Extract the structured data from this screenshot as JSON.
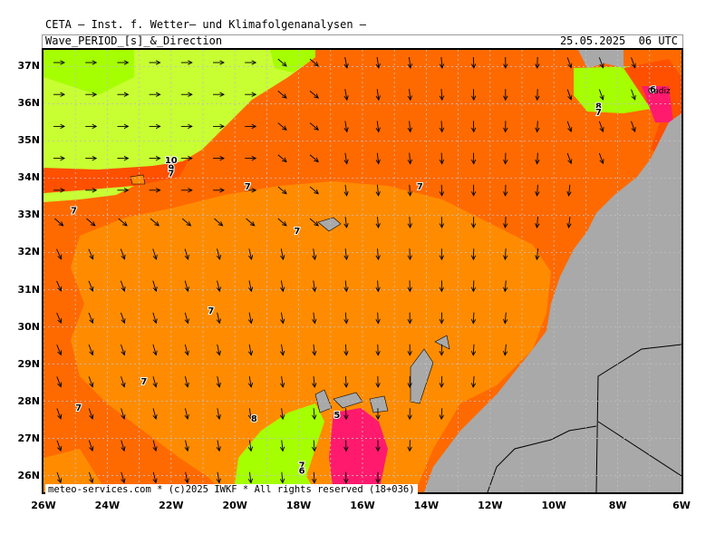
{
  "header": {
    "title": "CETA — Inst. f. Wetter— und Klimafolgenanalysen —",
    "subtitle": "Wave_PERIOD_[s]_&_Direction",
    "datetime": "25.05.2025  06 UTC"
  },
  "footer": "meteo-services.com * (c)2025 IWKF * All rights reserved (18+036)",
  "axes": {
    "lat_labels": [
      "37N",
      "36N",
      "35N",
      "34N",
      "33N",
      "32N",
      "31N",
      "30N",
      "29N",
      "28N",
      "27N",
      "26N"
    ],
    "lon_labels": [
      "26W",
      "24W",
      "22W",
      "20W",
      "18W",
      "16W",
      "14W",
      "12W",
      "10W",
      "8W",
      "6W"
    ]
  },
  "place_labels": {
    "cadiz": "Cadiz"
  },
  "period_labels": [
    {
      "text": "10",
      "lon": -22.0,
      "lat": 34.4
    },
    {
      "text": "9",
      "lon": -22.0,
      "lat": 34.2
    },
    {
      "text": "7",
      "lon": -22.0,
      "lat": 34.05
    },
    {
      "text": "7",
      "lon": -25.05,
      "lat": 33.05
    },
    {
      "text": "7",
      "lon": -19.6,
      "lat": 33.7
    },
    {
      "text": "7",
      "lon": -14.2,
      "lat": 33.7
    },
    {
      "text": "7",
      "lon": -18.05,
      "lat": 32.5
    },
    {
      "text": "7",
      "lon": -20.75,
      "lat": 30.35
    },
    {
      "text": "7",
      "lon": -22.85,
      "lat": 28.45
    },
    {
      "text": "7",
      "lon": -24.9,
      "lat": 27.75
    },
    {
      "text": "8",
      "lon": -19.4,
      "lat": 27.45
    },
    {
      "text": "5",
      "lon": -16.8,
      "lat": 27.55
    },
    {
      "text": "7",
      "lon": -17.9,
      "lat": 26.2
    },
    {
      "text": "6",
      "lon": -17.9,
      "lat": 26.05
    },
    {
      "text": "8",
      "lon": -8.6,
      "lat": 35.85
    },
    {
      "text": "7",
      "lon": -8.6,
      "lat": 35.7
    },
    {
      "text": "6",
      "lon": -6.9,
      "lat": 36.3
    }
  ],
  "colors": {
    "period_8_9": "#ff6a00",
    "period_7_8": "#ff8c00",
    "period_9_10": "#ff5000",
    "period_10_11": "#a6ff00",
    "period_11_12": "#c8ff33",
    "period_6_7": "#ffaa00",
    "period_5_6": "#ff1a6e",
    "land": "#a9a9a9",
    "arrow": "#000000",
    "grid": "#c0c0c0"
  }
}
